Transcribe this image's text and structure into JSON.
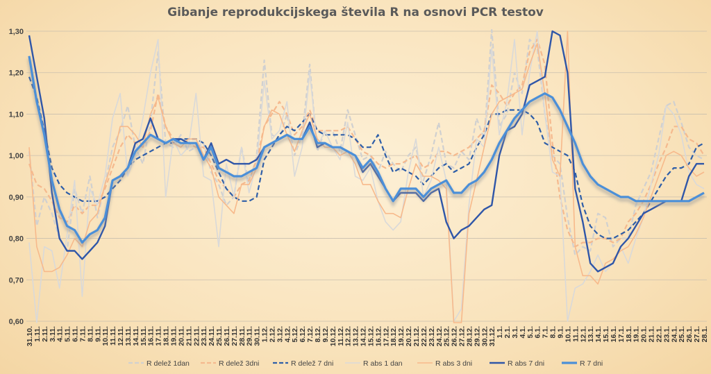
{
  "chart_data": {
    "type": "line",
    "title": "Gibanje reprodukcijskega števila R na osnovi PCR testov",
    "ylim": [
      0.6,
      1.3
    ],
    "y_ticks": [
      "0,60",
      "0,70",
      "0,80",
      "0,90",
      "1,00",
      "1,10",
      "1,20",
      "1,30"
    ],
    "grid": true,
    "legend_position": "bottom",
    "x_labels": [
      "31.10.",
      "1.11.",
      "2.11.",
      "3.11.",
      "4.11.",
      "5.11.",
      "6.11.",
      "7.11.",
      "8.11.",
      "9.11.",
      "10.11.",
      "11.11.",
      "12.11.",
      "13.11.",
      "14.11.",
      "15.11.",
      "16.11.",
      "17.11.",
      "18.11.",
      "19.11.",
      "20.11.",
      "21.11.",
      "22.11.",
      "23.11.",
      "24.11.",
      "25.11.",
      "26.11.",
      "27.11.",
      "28.11.",
      "29.11.",
      "30.11.",
      "1.12.",
      "2.12.",
      "3.12.",
      "4.12.",
      "5.12.",
      "6.12.",
      "7.12.",
      "8.12.",
      "9.12.",
      "10.12.",
      "11.12.",
      "12.12.",
      "13.12.",
      "14.12.",
      "15.12.",
      "16.12.",
      "17.12.",
      "18.12.",
      "19.12.",
      "20.12.",
      "21.12.",
      "22.12.",
      "23.12.",
      "24.12.",
      "25.12.",
      "26.12.",
      "27.12.",
      "28.12.",
      "29.12.",
      "30.12.",
      "31.12.",
      "1.1.",
      "2.1.",
      "3.1.",
      "4.1.",
      "5.1.",
      "6.1.",
      "7.1.",
      "8.1.",
      "9.1.",
      "10.1.",
      "11.1.",
      "12.1.",
      "13.1.",
      "14.1.",
      "15.1.",
      "16.1.",
      "17.1.",
      "18.1.",
      "19.1.",
      "20.1.",
      "21.1.",
      "22.1.",
      "23.1.",
      "24.1.",
      "25.1.",
      "26.1.",
      "27.1.",
      "28.1."
    ],
    "series": [
      {
        "name": "R delež 1dan",
        "color": "#d0d0d0",
        "dash": "7,4",
        "width": 2.2,
        "values": [
          1.01,
          0.83,
          0.9,
          0.86,
          0.8,
          0.77,
          0.92,
          0.86,
          0.95,
          0.85,
          0.93,
          1.02,
          1.06,
          1.12,
          1.02,
          0.98,
          1.08,
          1.25,
          1.03,
          1.02,
          1.05,
          1.01,
          1.02,
          1.03,
          0.96,
          0.93,
          0.88,
          0.9,
          1.02,
          0.93,
          1.0,
          1.23,
          1.05,
          1.04,
          1.1,
          1.0,
          1.05,
          1.22,
          1.01,
          1.06,
          1.06,
          1.01,
          1.11,
          1.05,
          0.99,
          1.0,
          0.96,
          1.01,
          0.98,
          0.96,
          1.0,
          1.02,
          0.94,
          1.0,
          1.08,
          0.98,
          0.97,
          1.01,
          0.99,
          1.09,
          1.04,
          1.31,
          1.07,
          1.1,
          1.2,
          1.15,
          1.28,
          1.26,
          1.1,
          1.0,
          0.98,
          0.85,
          0.76,
          0.78,
          0.77,
          0.86,
          0.85,
          0.78,
          0.8,
          0.8,
          0.88,
          0.92,
          0.96,
          1.04,
          1.12,
          1.13,
          1.08,
          1.02,
          1.0,
          0.99
        ]
      },
      {
        "name": "R delež 3dni",
        "color": "#f5b98e",
        "dash": "7,4",
        "width": 2.2,
        "values": [
          0.98,
          0.93,
          0.92,
          0.89,
          0.85,
          0.84,
          0.88,
          0.86,
          0.88,
          0.88,
          0.92,
          0.97,
          1.02,
          1.05,
          1.03,
          1.02,
          1.06,
          1.15,
          1.07,
          1.04,
          1.04,
          1.03,
          1.02,
          1.02,
          0.98,
          0.94,
          0.92,
          0.9,
          0.93,
          0.94,
          0.99,
          1.07,
          1.1,
          1.13,
          1.1,
          1.05,
          1.07,
          1.11,
          1.06,
          1.06,
          1.06,
          1.06,
          1.07,
          1.04,
          1.01,
          1.0,
          0.98,
          0.97,
          0.98,
          0.98,
          0.99,
          1.0,
          0.97,
          0.98,
          1.01,
          1.01,
          1.0,
          1.01,
          1.02,
          1.04,
          1.06,
          1.17,
          1.15,
          1.12,
          1.15,
          1.17,
          1.25,
          1.28,
          1.22,
          1.03,
          0.9,
          0.82,
          0.78,
          0.79,
          0.79,
          0.8,
          0.8,
          0.79,
          0.8,
          0.84,
          0.86,
          0.89,
          0.93,
          0.98,
          1.02,
          1.07,
          1.07,
          1.04,
          1.03,
          1.0
        ]
      },
      {
        "name": "R delež 7 dni",
        "color": "#2e5ea8",
        "dash": "7,4",
        "width": 2.2,
        "values": [
          1.19,
          1.14,
          1.06,
          0.97,
          0.93,
          0.91,
          0.9,
          0.89,
          0.89,
          0.89,
          0.9,
          0.92,
          0.94,
          0.97,
          0.99,
          1.0,
          1.01,
          1.02,
          1.03,
          1.03,
          1.04,
          1.04,
          1.04,
          1.03,
          1.0,
          0.96,
          0.92,
          0.9,
          0.89,
          0.89,
          0.9,
          0.99,
          1.02,
          1.05,
          1.07,
          1.06,
          1.08,
          1.1,
          1.06,
          1.05,
          1.05,
          1.05,
          1.05,
          1.04,
          1.02,
          1.02,
          1.05,
          1.0,
          0.96,
          0.97,
          0.96,
          0.95,
          0.93,
          0.95,
          0.97,
          0.98,
          0.96,
          0.97,
          0.98,
          1.02,
          1.05,
          1.1,
          1.1,
          1.11,
          1.11,
          1.11,
          1.1,
          1.08,
          1.03,
          1.02,
          1.01,
          1.0,
          0.96,
          0.88,
          0.83,
          0.81,
          0.8,
          0.8,
          0.81,
          0.82,
          0.84,
          0.86,
          0.89,
          0.92,
          0.95,
          0.97,
          0.97,
          0.98,
          1.02,
          1.03
        ]
      },
      {
        "name": "R abs 1 dan",
        "color": "#d9d9d9",
        "dash": "",
        "width": 1.6,
        "values": [
          0.79,
          0.58,
          0.78,
          0.77,
          0.68,
          0.81,
          0.94,
          0.66,
          0.92,
          0.88,
          0.95,
          1.09,
          1.15,
          0.95,
          1.0,
          1.09,
          1.2,
          1.28,
          0.9,
          1.04,
          1.0,
          1.02,
          1.15,
          0.95,
          0.94,
          0.78,
          0.98,
          0.9,
          1.02,
          0.91,
          0.98,
          1.18,
          1.04,
          1.06,
          1.13,
          0.95,
          1.02,
          1.2,
          1.02,
          1.06,
          1.02,
          0.99,
          1.08,
          0.95,
          0.94,
          0.97,
          0.89,
          0.84,
          0.82,
          0.84,
          0.96,
          1.04,
          0.9,
          0.94,
          1.02,
          0.94,
          0.6,
          0.63,
          0.88,
          1.04,
          1.02,
          1.26,
          1.05,
          1.13,
          1.28,
          1.05,
          1.2,
          1.3,
          1.1,
          0.96,
          0.95,
          0.6,
          0.68,
          0.69,
          0.72,
          0.76,
          0.72,
          0.74,
          0.78,
          0.74,
          0.8,
          0.85,
          0.93,
          1.0,
          1.12,
          1.1,
          1.05,
          0.96,
          0.93,
          0.92
        ]
      },
      {
        "name": "R abs 3 dni",
        "color": "#f7b98b",
        "dash": "",
        "width": 1.6,
        "values": [
          1.02,
          0.78,
          0.72,
          0.72,
          0.73,
          0.76,
          0.8,
          0.78,
          0.84,
          0.86,
          0.93,
          0.99,
          1.07,
          1.07,
          1.05,
          1.02,
          1.1,
          1.14,
          1.07,
          1.03,
          1.02,
          1.04,
          1.04,
          1.0,
          0.97,
          0.9,
          0.88,
          0.86,
          0.93,
          0.93,
          0.97,
          1.07,
          1.11,
          1.1,
          1.05,
          1.01,
          1.06,
          1.1,
          1.04,
          1.02,
          1.02,
          1.0,
          1.01,
          0.98,
          0.93,
          0.93,
          0.89,
          0.86,
          0.86,
          0.85,
          0.92,
          0.98,
          0.95,
          0.95,
          0.94,
          0.92,
          0.59,
          0.59,
          0.86,
          0.94,
          1.02,
          1.1,
          1.13,
          1.14,
          1.15,
          1.16,
          1.22,
          1.27,
          1.15,
          0.99,
          0.95,
          1.3,
          0.78,
          0.71,
          0.71,
          0.69,
          0.74,
          0.75,
          0.77,
          0.78,
          0.81,
          0.85,
          0.9,
          0.95,
          1.0,
          1.01,
          1.0,
          0.97,
          0.95,
          0.96
        ]
      },
      {
        "name": "R abs 7 dni",
        "color": "#2f56a8",
        "dash": "",
        "width": 2.4,
        "values": [
          1.29,
          1.19,
          1.09,
          0.91,
          0.8,
          0.77,
          0.77,
          0.75,
          0.77,
          0.79,
          0.83,
          0.94,
          0.95,
          0.97,
          1.03,
          1.04,
          1.09,
          1.04,
          1.03,
          1.04,
          1.04,
          1.03,
          1.03,
          0.99,
          1.03,
          0.98,
          0.99,
          0.98,
          0.98,
          0.98,
          0.99,
          1.02,
          1.03,
          1.04,
          1.05,
          1.04,
          1.04,
          1.08,
          1.02,
          1.03,
          1.02,
          1.02,
          1.01,
          1.0,
          0.96,
          0.98,
          0.95,
          0.92,
          0.89,
          0.91,
          0.91,
          0.91,
          0.89,
          0.91,
          0.92,
          0.84,
          0.8,
          0.82,
          0.83,
          0.85,
          0.87,
          0.88,
          1.0,
          1.06,
          1.07,
          1.1,
          1.17,
          1.18,
          1.19,
          1.3,
          1.29,
          1.2,
          0.92,
          0.84,
          0.74,
          0.72,
          0.73,
          0.74,
          0.78,
          0.8,
          0.83,
          0.86,
          0.87,
          0.88,
          0.89,
          0.89,
          0.89,
          0.95,
          0.98,
          0.98
        ]
      },
      {
        "name": "R 7 dni",
        "color": "#4b8fd8",
        "dash": "",
        "width": 3.2,
        "shadow": true,
        "values": [
          1.24,
          1.13,
          1.05,
          0.94,
          0.87,
          0.83,
          0.82,
          0.79,
          0.81,
          0.82,
          0.85,
          0.94,
          0.95,
          0.97,
          1.01,
          1.03,
          1.05,
          1.04,
          1.03,
          1.04,
          1.03,
          1.03,
          1.03,
          0.99,
          1.02,
          0.97,
          0.96,
          0.95,
          0.95,
          0.96,
          0.97,
          1.02,
          1.03,
          1.04,
          1.05,
          1.04,
          1.04,
          1.07,
          1.03,
          1.03,
          1.02,
          1.02,
          1.01,
          1.0,
          0.97,
          0.99,
          0.96,
          0.92,
          0.89,
          0.92,
          0.92,
          0.92,
          0.9,
          0.92,
          0.93,
          0.94,
          0.91,
          0.91,
          0.93,
          0.94,
          0.96,
          0.99,
          1.03,
          1.06,
          1.09,
          1.11,
          1.13,
          1.14,
          1.15,
          1.14,
          1.11,
          1.07,
          1.03,
          0.98,
          0.95,
          0.93,
          0.92,
          0.91,
          0.9,
          0.9,
          0.89,
          0.89,
          0.89,
          0.89,
          0.89,
          0.89,
          0.89,
          0.89,
          0.9,
          0.91
        ]
      }
    ]
  }
}
